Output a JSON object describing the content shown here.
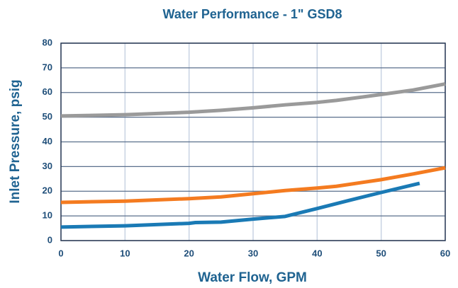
{
  "chart_data": {
    "type": "line",
    "title": "Water Performance - 1\" GSD8",
    "xlabel": "Water Flow, GPM",
    "ylabel": "Inlet Pressure, psig",
    "xlim": [
      0,
      60
    ],
    "xticks": [
      0,
      10,
      20,
      30,
      40,
      50,
      60
    ],
    "ylim": [
      0,
      80
    ],
    "yticks": [
      0,
      10,
      20,
      30,
      40,
      50,
      60,
      70,
      80
    ],
    "grid": true,
    "series": [
      {
        "color": "#9a9a9a",
        "x": [
          0,
          10,
          20,
          25,
          30,
          35,
          40,
          43,
          50,
          55,
          60
        ],
        "values": [
          50.5,
          51,
          52,
          52.8,
          53.8,
          55,
          56,
          56.8,
          59.2,
          61,
          63.5
        ]
      },
      {
        "color": "#f47b20",
        "x": [
          0,
          10,
          20,
          25,
          30,
          35,
          40,
          43,
          50,
          55,
          60
        ],
        "values": [
          15.5,
          16,
          17,
          17.7,
          19,
          20.3,
          21.3,
          22,
          24.7,
          27,
          29.5
        ]
      },
      {
        "color": "#1a7ab5",
        "x": [
          0,
          10,
          20,
          21,
          25,
          30,
          35,
          40,
          45,
          50,
          56
        ],
        "values": [
          5.5,
          6,
          7,
          7.3,
          7.5,
          8.7,
          9.8,
          13,
          16.3,
          19.5,
          23.2
        ]
      }
    ]
  }
}
